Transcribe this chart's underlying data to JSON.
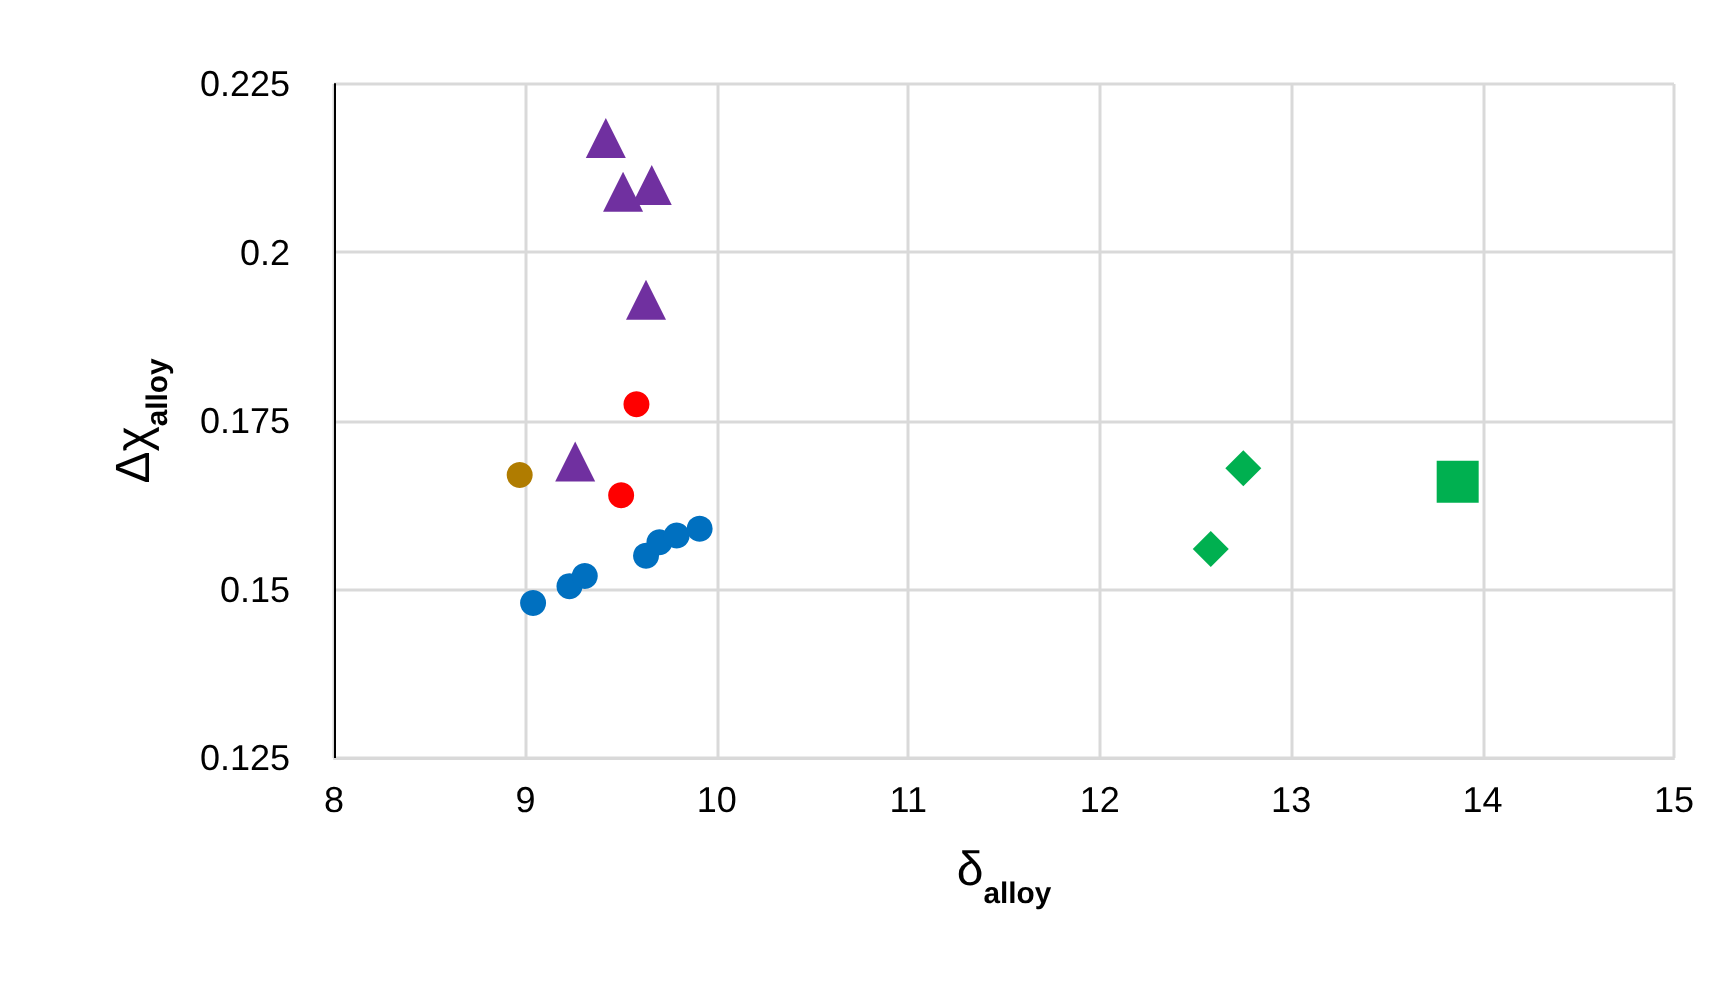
{
  "chart_data": {
    "type": "scatter",
    "xlabel": "δ$_{alloy}$",
    "ylabel": "Δχ$_{alloy}$",
    "xlim": [
      8,
      15
    ],
    "xticks": [
      8,
      9,
      10,
      11,
      12,
      13,
      14,
      15
    ],
    "ylim": [
      0.125,
      0.225
    ],
    "yticks": [
      0.125,
      0.15,
      0.175,
      0.2,
      0.225
    ],
    "grid": true,
    "series": [
      {
        "color": "#0070c0",
        "marker": "circle",
        "x": [
          9.04,
          9.23,
          9.31,
          9.63,
          9.7,
          9.79,
          9.91
        ],
        "values": [
          0.148,
          0.1505,
          0.152,
          0.155,
          0.157,
          0.158,
          0.159
        ]
      },
      {
        "color": "#ff0000",
        "marker": "circle",
        "x": [
          9.58,
          9.5
        ],
        "values": [
          0.1775,
          0.164
        ]
      },
      {
        "color": "#b07c00",
        "marker": "circle",
        "x": [
          8.97
        ],
        "values": [
          0.167
        ]
      },
      {
        "color": "#7030a0",
        "marker": "triangle",
        "x": [
          9.42,
          9.51,
          9.66,
          9.63,
          9.26
        ],
        "values": [
          0.217,
          0.209,
          0.21,
          0.193,
          0.169
        ]
      },
      {
        "color": "#00b050",
        "marker": "diamond",
        "x": [
          12.75,
          12.58
        ],
        "values": [
          0.168,
          0.156
        ]
      },
      {
        "color": "#00b050",
        "marker": "square",
        "x": [
          13.87
        ],
        "values": [
          0.166
        ]
      }
    ]
  }
}
